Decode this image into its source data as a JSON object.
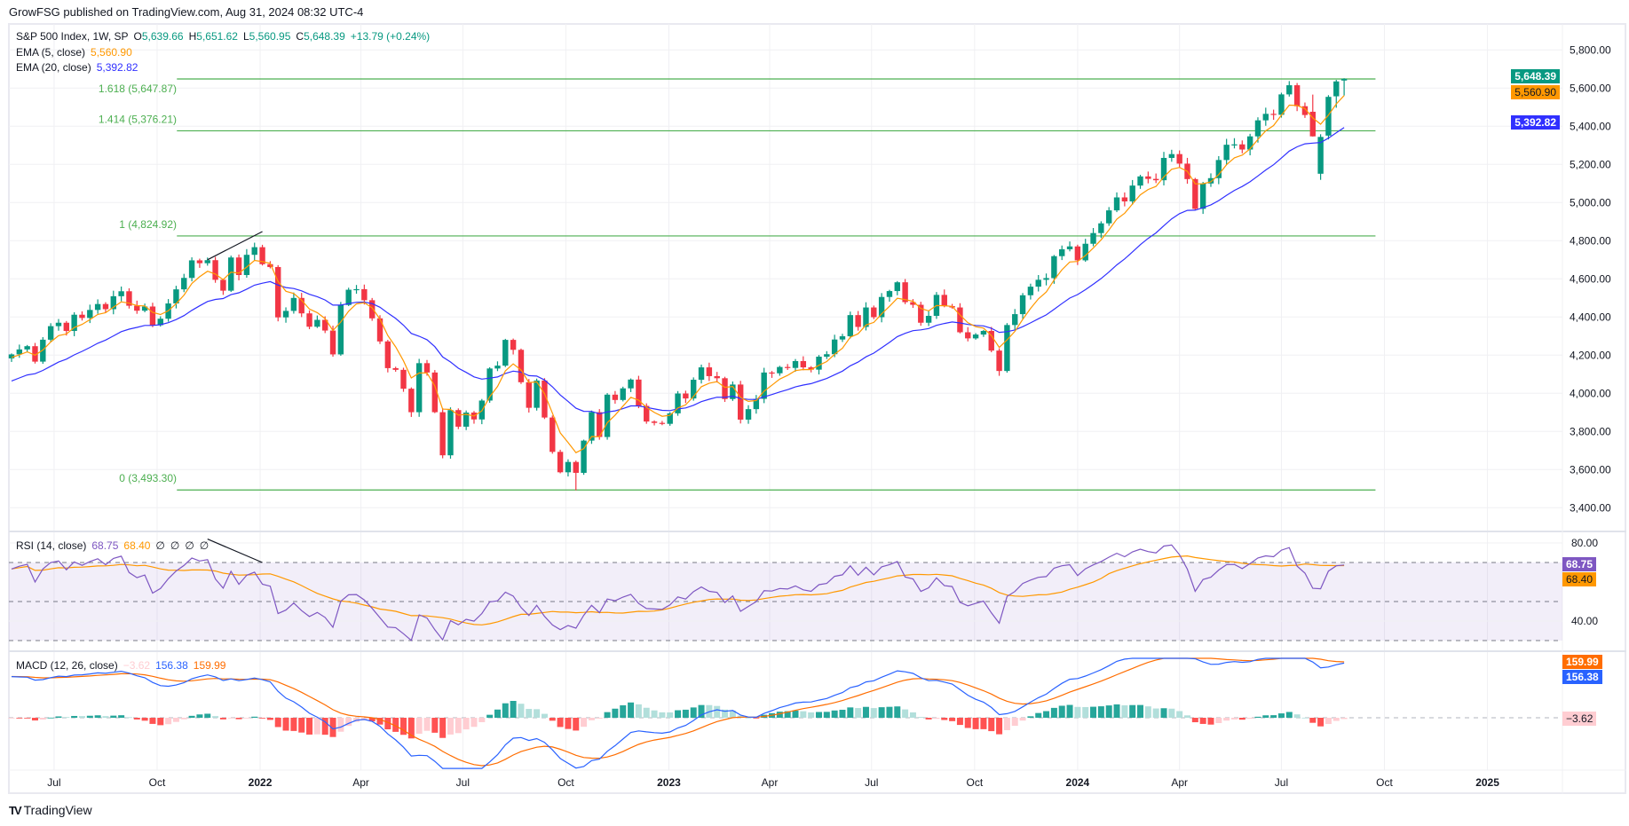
{
  "header": {
    "publish_line": "GrowFSG published on TradingView.com, Aug 31, 2024 08:32 UTC-4",
    "symbol": "S&P 500 Index, 1W, SP",
    "o_label": "O",
    "o": "5,639.66",
    "h_label": "H",
    "h": "5,651.62",
    "l_label": "L",
    "l": "5,560.95",
    "c_label": "C",
    "c": "5,648.39",
    "change": "+13.79 (+0.24%)",
    "ema5_label": "EMA (5, close)",
    "ema5_value": "5,560.90",
    "ema20_label": "EMA (20, close)",
    "ema20_value": "5,392.82"
  },
  "rsi_legend": {
    "label": "RSI (14, close)",
    "rsi": "68.75",
    "ma": "68.40",
    "extras": [
      "∅",
      "∅",
      "∅",
      "∅"
    ]
  },
  "macd_legend": {
    "label": "MACD (12, 26, close)",
    "hist": "−3.62",
    "macd": "156.38",
    "signal": "159.99"
  },
  "badges": {
    "close": "5,648.39",
    "ema5": "5,560.90",
    "ema20": "5,392.82",
    "rsi": "68.75",
    "rsi_ma": "68.40",
    "signal": "159.99",
    "macd": "156.38",
    "hist": "−3.62"
  },
  "colors": {
    "up": "#089981",
    "down": "#f23645",
    "ema5": "#ff9800",
    "ema20": "#3030ff",
    "fib": "#4caf50",
    "rsi": "#7e57c2",
    "rsi_ma": "#ff9800",
    "macd": "#2962ff",
    "signal": "#ff6d00",
    "hist_up_strong": "#26a69a",
    "hist_up_weak": "#b2dfdb",
    "hist_dn_strong": "#ff5252",
    "hist_dn_weak": "#ffcdd2"
  },
  "footer": {
    "brand": "TradingView"
  },
  "chart_data": [
    {
      "type": "candlestick",
      "title": "S&P 500 Index, 1W",
      "first_week": "2021-05-24",
      "closes": [
        4204,
        4230,
        4247,
        4166,
        4281,
        4352,
        4370,
        4327,
        4412,
        4395,
        4437,
        4468,
        4441,
        4509,
        4535,
        4459,
        4433,
        4455,
        4357,
        4391,
        4471,
        4545,
        4605,
        4697,
        4682,
        4698,
        4595,
        4538,
        4712,
        4620,
        4726,
        4766,
        4677,
        4662,
        4398,
        4432,
        4500,
        4419,
        4349,
        4385,
        4329,
        4204,
        4463,
        4543,
        4546,
        4488,
        4393,
        4272,
        4132,
        4123,
        4024,
        3901,
        4158,
        4109,
        3901,
        3675,
        3912,
        3825,
        3899,
        3863,
        3962,
        4130,
        4145,
        4280,
        4228,
        4058,
        3924,
        4067,
        3873,
        3693,
        3586,
        3640,
        3583,
        3752,
        3901,
        3771,
        3993,
        3965,
        4026,
        4072,
        3934,
        3852,
        3845,
        3840,
        3895,
        3999,
        3973,
        4071,
        4136,
        4090,
        4079,
        3970,
        4046,
        3862,
        3917,
        3971,
        4109,
        4105,
        4138,
        4133,
        4169,
        4136,
        4124,
        4192,
        4205,
        4282,
        4299,
        4410,
        4348,
        4450,
        4399,
        4505,
        4536,
        4582,
        4478,
        4464,
        4370,
        4406,
        4516,
        4457,
        4450,
        4320,
        4288,
        4308,
        4327,
        4224,
        4117,
        4358,
        4415,
        4514,
        4559,
        4595,
        4604,
        4719,
        4755,
        4770,
        4697,
        4784,
        4840,
        4891,
        4959,
        5027,
        5006,
        5089,
        5137,
        5124,
        5117,
        5234,
        5254,
        5204,
        5123,
        4967,
        5100,
        5128,
        5223,
        5303,
        5305,
        5278,
        5347,
        5431,
        5465,
        5460,
        5567,
        5615,
        5505,
        5459,
        5347,
        5344,
        5554,
        5635,
        5648.39
      ],
      "ohlc_overrides": {
        "72": {
          "l": 3491.58
        },
        "166": {
          "o": 5476,
          "h": 5566,
          "l": 5346,
          "c": 5347
        },
        "167": {
          "o": 5151,
          "h": 5358,
          "l": 5119,
          "c": 5344
        },
        "168": {
          "o": 5351,
          "h": 5563,
          "l": 5331,
          "c": 5554
        },
        "169": {
          "o": 5557,
          "h": 5643,
          "l": 5497,
          "c": 5635
        },
        "170": {
          "o": 5639.66,
          "h": 5651.62,
          "l": 5560.95,
          "c": 5648.39
        }
      },
      "ema_periods": [
        5,
        20
      ],
      "ema_seeds": [
        4180,
        4050
      ],
      "price_ticks": [
        5800,
        5600,
        5400,
        5200,
        5000,
        4800,
        4600,
        4400,
        4200,
        4000,
        3800,
        3600,
        3400
      ],
      "price_tick_labels": [
        "5,800.00",
        "5,600.00",
        "5,400.00",
        "5,200.00",
        "5,000.00",
        "4,800.00",
        "4,600.00",
        "4,400.00",
        "4,200.00",
        "4,000.00",
        "3,800.00",
        "3,600.00",
        "3,400.00"
      ],
      "fib_levels": [
        {
          "ratio": "1.618",
          "price": 5647.87,
          "label": "1.618 (5,647.87)"
        },
        {
          "ratio": "1.414",
          "price": 5376.21,
          "label": "1.414 (5,376.21)"
        },
        {
          "ratio": "1",
          "price": 4824.92,
          "label": "1 (4,824.92)"
        },
        {
          "ratio": "0",
          "price": 3493.3,
          "label": "0 (3,493.30)"
        }
      ],
      "fib_range_weeks": [
        22,
        174
      ],
      "trendline": {
        "from": {
          "week": 25,
          "price": 4700
        },
        "to": {
          "week": 32,
          "price": 4848
        }
      }
    },
    {
      "type": "line",
      "title": "RSI (14, close)",
      "period": 14,
      "ma_period": 14,
      "seed_avg_gain": 32,
      "seed_avg_loss": 16,
      "bands": [
        70,
        50,
        30
      ],
      "ticks": [
        80,
        40
      ],
      "tick_labels": [
        "80.00",
        "40.00"
      ],
      "trendline": {
        "from": {
          "week": 25,
          "value": 82
        },
        "to": {
          "week": 32,
          "value": 70
        }
      }
    },
    {
      "type": "line+bar",
      "title": "MACD (12, 26, close)",
      "fast": 12,
      "slow": 26,
      "signal": 9,
      "seeds": {
        "fast": 4120,
        "slow": 4000,
        "signal": 118
      }
    }
  ],
  "time_axis": {
    "labels": [
      {
        "text": "Jul",
        "date": "2021-07-01",
        "bold": false
      },
      {
        "text": "Oct",
        "date": "2021-10-01",
        "bold": false
      },
      {
        "text": "2022",
        "date": "2022-01-01",
        "bold": true
      },
      {
        "text": "Apr",
        "date": "2022-04-01",
        "bold": false
      },
      {
        "text": "Jul",
        "date": "2022-07-01",
        "bold": false
      },
      {
        "text": "Oct",
        "date": "2022-10-01",
        "bold": false
      },
      {
        "text": "2023",
        "date": "2023-01-01",
        "bold": true
      },
      {
        "text": "Apr",
        "date": "2023-04-01",
        "bold": false
      },
      {
        "text": "Jul",
        "date": "2023-07-01",
        "bold": false
      },
      {
        "text": "Oct",
        "date": "2023-10-01",
        "bold": false
      },
      {
        "text": "2024",
        "date": "2024-01-01",
        "bold": true
      },
      {
        "text": "Apr",
        "date": "2024-04-01",
        "bold": false
      },
      {
        "text": "Jul",
        "date": "2024-07-01",
        "bold": false
      },
      {
        "text": "Oct",
        "date": "2024-10-01",
        "bold": false
      },
      {
        "text": "2025",
        "date": "2025-01-01",
        "bold": true
      }
    ]
  }
}
